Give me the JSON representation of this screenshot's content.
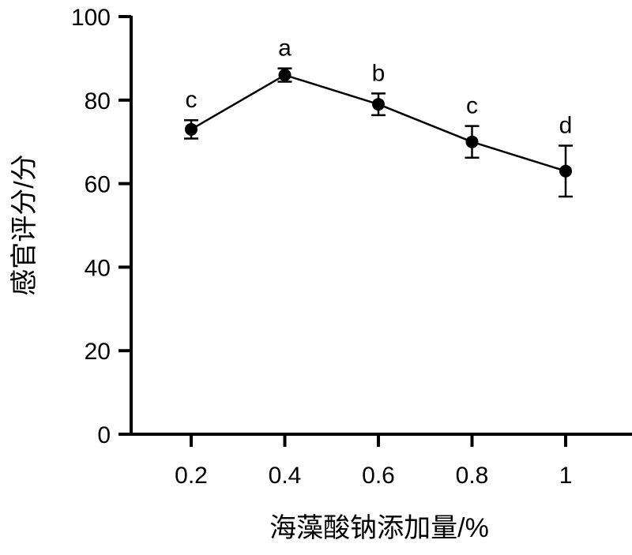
{
  "chart_data": {
    "type": "line",
    "title": "",
    "xlabel": "海藻酸钠添加量/%",
    "ylabel": "感官评分/分",
    "x": [
      0.2,
      0.4,
      0.6,
      0.8,
      1
    ],
    "x_tick_labels": [
      "0.2",
      "0.4",
      "0.6",
      "0.8",
      "1"
    ],
    "ylim": [
      0,
      100
    ],
    "y_ticks": [
      0,
      20,
      40,
      60,
      80,
      100
    ],
    "y_tick_labels": [
      "0",
      "20",
      "40",
      "60",
      "80",
      "100"
    ],
    "grid": false,
    "series": [
      {
        "values": [
          73,
          86,
          79,
          70,
          63
        ],
        "errors": [
          2.2,
          1.6,
          2.6,
          3.8,
          6.1
        ],
        "significance_labels": [
          "c",
          "a",
          "b",
          "c",
          "d"
        ],
        "color": "#000000",
        "marker": "circle"
      }
    ]
  }
}
